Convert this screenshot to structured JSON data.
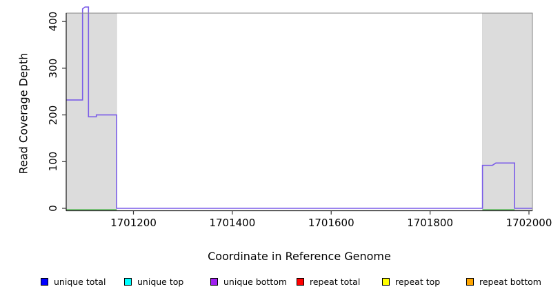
{
  "chart_data": {
    "type": "line",
    "title": "",
    "xlabel": "Coordinate in Reference Genome",
    "ylabel": "Read Coverage Depth",
    "xlim": [
      1701064,
      1702007
    ],
    "ylim": [
      0,
      435
    ],
    "x_ticks": [
      1701200,
      1701400,
      1701600,
      1701800,
      1702000
    ],
    "y_ticks": [
      0,
      100,
      200,
      300,
      400
    ],
    "grid": false,
    "legend_position": "bottom",
    "colors": {
      "shade": "#dcdcdc",
      "coverage_line": "#7a5ce8",
      "baseline_green": "#62bd62",
      "box_light": "#858585",
      "axis_dark": "#1a1a1a",
      "tick": "#333333"
    },
    "shaded_regions": [
      {
        "name": "left-repeat-region",
        "x0": 1701064,
        "x1": 1701166
      },
      {
        "name": "right-repeat-region",
        "x0": 1701906,
        "x1": 1702007
      }
    ],
    "series": [
      {
        "name": "coverage",
        "color": "#7a5ce8",
        "points": [
          [
            1701064,
            232
          ],
          [
            1701097,
            232
          ],
          [
            1701097,
            427
          ],
          [
            1701102,
            431
          ],
          [
            1701109,
            431
          ],
          [
            1701109,
            196
          ],
          [
            1701125,
            196
          ],
          [
            1701125,
            200
          ],
          [
            1701166,
            200
          ],
          [
            1701166,
            0
          ],
          [
            1701906,
            0
          ],
          [
            1701906,
            92
          ],
          [
            1701926,
            92
          ],
          [
            1701933,
            97
          ],
          [
            1701971,
            97
          ],
          [
            1701971,
            0
          ],
          [
            1702007,
            0
          ]
        ]
      },
      {
        "name": "zero-baseline-left",
        "color": "#62bd62",
        "points": [
          [
            1701064,
            0
          ],
          [
            1701166,
            0
          ]
        ]
      },
      {
        "name": "zero-baseline-right",
        "color": "#62bd62",
        "points": [
          [
            1701906,
            0
          ],
          [
            1701971,
            0
          ]
        ]
      }
    ],
    "legend": [
      {
        "label": "unique total",
        "color": "#0000ff"
      },
      {
        "label": "unique top",
        "color": "#00ffff"
      },
      {
        "label": "unique bottom",
        "color": "#a020f0"
      },
      {
        "label": "repeat total",
        "color": "#ff0000"
      },
      {
        "label": "repeat top",
        "color": "#ffff00"
      },
      {
        "label": "repeat bottom",
        "color": "#ffa500"
      }
    ]
  }
}
